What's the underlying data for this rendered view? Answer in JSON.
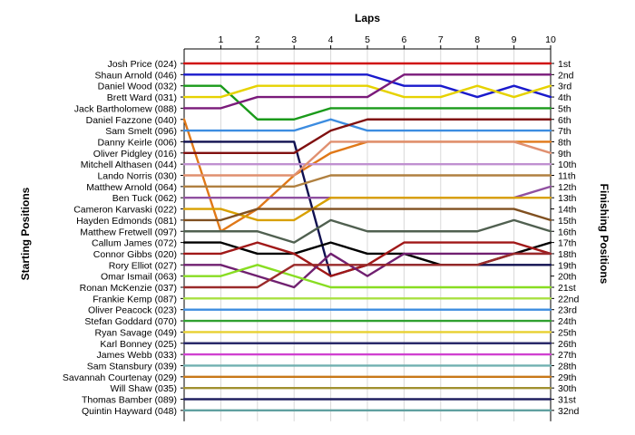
{
  "chart_data": {
    "type": "line",
    "title": "Laps",
    "ylabel_left": "Starting Positions",
    "ylabel_right": "Finishing Positions",
    "laps": [
      1,
      2,
      3,
      4,
      5,
      6,
      7,
      8,
      9,
      10
    ],
    "y_reversed": true,
    "ylim": [
      1,
      32
    ],
    "grid": true,
    "driver_labels": [
      "Josh Price (024)",
      "Shaun Arnold (046)",
      "Daniel Wood (032)",
      "Brett Ward (031)",
      "Jack Bartholomew (088)",
      "Daniel Fazzone (040)",
      "Sam Smelt (096)",
      "Danny Keirle (006)",
      "Oliver Pidgley (016)",
      "Mitchell Althasen (044)",
      "Lando Norris (030)",
      "Matthew Arnold (064)",
      "Ben Tuck (062)",
      "Cameron Karvaski (022)",
      "Hayden Edmonds (081)",
      "Matthew Fretwell (097)",
      "Callum James (072)",
      "Connor Gibbs (020)",
      "Rory Elliot (027)",
      "Omar Ismail (063)",
      "Ronan McKenzie (037)",
      "Frankie Kemp (087)",
      "Oliver Peacock (023)",
      "Stefan Goddard (070)",
      "Ryan Savage (049)",
      "Karl Bonney (025)",
      "James Webb (033)",
      "Sam Stansbury (039)",
      "Savannah Courtenay (029)",
      "Will Shaw (035)",
      "Thomas Bamber (089)",
      "Quintin Hayward (048)"
    ],
    "finishing_labels": [
      "1st",
      "2nd",
      "3rd",
      "4th",
      "5th",
      "6th",
      "7th",
      "8th",
      "9th",
      "10th",
      "11th",
      "12th",
      "13th",
      "14th",
      "15th",
      "16th",
      "17th",
      "18th",
      "19th",
      "20th",
      "21st",
      "22nd",
      "23rd",
      "24th",
      "25th",
      "26th",
      "27th",
      "28th",
      "29th",
      "30th",
      "31st",
      "32nd"
    ],
    "series": [
      {
        "start": 1,
        "positions": [
          1,
          1,
          1,
          1,
          1,
          1,
          1,
          1,
          1,
          1
        ],
        "color": "#d01010"
      },
      {
        "start": 2,
        "positions": [
          2,
          2,
          2,
          2,
          2,
          3,
          3,
          4,
          3,
          4
        ],
        "color": "#1a1acc"
      },
      {
        "start": 3,
        "positions": [
          3,
          6,
          6,
          5,
          5,
          5,
          5,
          5,
          5,
          5
        ],
        "color": "#1a9a1a"
      },
      {
        "start": 4,
        "positions": [
          4,
          3,
          3,
          3,
          3,
          4,
          4,
          3,
          4,
          3
        ],
        "color": "#e6d200"
      },
      {
        "start": 5,
        "positions": [
          5,
          4,
          4,
          4,
          4,
          2,
          2,
          2,
          2,
          2
        ],
        "color": "#7a1a7a"
      },
      {
        "start": 6,
        "positions": [
          16,
          14,
          11,
          9,
          8,
          8,
          8,
          8,
          8,
          8
        ],
        "color": "#e07818"
      },
      {
        "start": 7,
        "positions": [
          7,
          7,
          7,
          6,
          7,
          7,
          7,
          7,
          7,
          7
        ],
        "color": "#3c8ce0"
      },
      {
        "start": 8,
        "positions": [
          8,
          8,
          8,
          20,
          19,
          19,
          19,
          19,
          19,
          19
        ],
        "color": "#101050"
      },
      {
        "start": 9,
        "positions": [
          9,
          9,
          9,
          7,
          6,
          6,
          6,
          6,
          6,
          6
        ],
        "color": "#801010"
      },
      {
        "start": 10,
        "positions": [
          10,
          10,
          10,
          10,
          10,
          10,
          10,
          10,
          10,
          10
        ],
        "color": "#c090d0"
      },
      {
        "start": 11,
        "positions": [
          11,
          11,
          11,
          8,
          8,
          8,
          8,
          8,
          8,
          9
        ],
        "color": "#e09070"
      },
      {
        "start": 12,
        "positions": [
          12,
          12,
          12,
          11,
          11,
          11,
          11,
          11,
          11,
          11
        ],
        "color": "#b08040"
      },
      {
        "start": 13,
        "positions": [
          13,
          13,
          13,
          13,
          13,
          13,
          13,
          13,
          13,
          12
        ],
        "color": "#9050a0"
      },
      {
        "start": 14,
        "positions": [
          14,
          15,
          15,
          13,
          13,
          13,
          13,
          13,
          13,
          13
        ],
        "color": "#d8a000"
      },
      {
        "start": 15,
        "positions": [
          15,
          14,
          14,
          14,
          14,
          14,
          14,
          14,
          14,
          15
        ],
        "color": "#805020"
      },
      {
        "start": 16,
        "positions": [
          16,
          16,
          17,
          15,
          16,
          16,
          16,
          16,
          15,
          16
        ],
        "color": "#506050"
      },
      {
        "start": 17,
        "positions": [
          17,
          18,
          18,
          17,
          18,
          18,
          19,
          19,
          18,
          17
        ],
        "color": "#000000"
      },
      {
        "start": 18,
        "positions": [
          18,
          17,
          18,
          20,
          19,
          17,
          17,
          17,
          17,
          18
        ],
        "color": "#a01818"
      },
      {
        "start": 19,
        "positions": [
          19,
          20,
          21,
          18,
          20,
          18,
          18,
          18,
          18,
          18
        ],
        "color": "#702070"
      },
      {
        "start": 20,
        "positions": [
          20,
          19,
          20,
          21,
          21,
          21,
          21,
          21,
          21,
          21
        ],
        "color": "#88dd22"
      },
      {
        "start": 21,
        "positions": [
          21,
          21,
          19,
          19,
          19,
          19,
          19,
          19,
          18,
          18
        ],
        "color": "#9a2a2a"
      },
      {
        "start": 22,
        "positions": [
          22,
          22,
          22,
          22,
          22,
          22,
          22,
          22,
          22,
          22
        ],
        "color": "#a8e040"
      },
      {
        "start": 23,
        "positions": [
          23,
          23,
          23,
          23,
          23,
          23,
          23,
          23,
          23,
          23
        ],
        "color": "#3c8ce0"
      },
      {
        "start": 24,
        "positions": [
          24,
          24,
          24,
          24,
          24,
          24,
          24,
          24,
          24,
          24
        ],
        "color": "#30a030"
      },
      {
        "start": 25,
        "positions": [
          25,
          25,
          25,
          25,
          25,
          25,
          25,
          25,
          25,
          25
        ],
        "color": "#e8d030"
      },
      {
        "start": 26,
        "positions": [
          26,
          26,
          26,
          26,
          26,
          26,
          26,
          26,
          26,
          26
        ],
        "color": "#2a2a6a"
      },
      {
        "start": 27,
        "positions": [
          27,
          27,
          27,
          27,
          27,
          27,
          27,
          27,
          27,
          27
        ],
        "color": "#d040d0"
      },
      {
        "start": 28,
        "positions": [
          28,
          28,
          28,
          28,
          28,
          28,
          28,
          28,
          28,
          28
        ],
        "color": "#70b0b0"
      },
      {
        "start": 29,
        "positions": [
          29,
          29,
          29,
          29,
          29,
          29,
          29,
          29,
          29,
          29
        ],
        "color": "#c87818"
      },
      {
        "start": 30,
        "positions": [
          30,
          30,
          30,
          30,
          30,
          30,
          30,
          30,
          30,
          30
        ],
        "color": "#a09030"
      },
      {
        "start": 31,
        "positions": [
          31,
          31,
          31,
          31,
          31,
          31,
          31,
          31,
          31,
          31
        ],
        "color": "#202060"
      },
      {
        "start": 32,
        "positions": [
          32,
          32,
          32,
          32,
          32,
          32,
          32,
          32,
          32,
          32
        ],
        "color": "#60a0a0"
      }
    ]
  }
}
